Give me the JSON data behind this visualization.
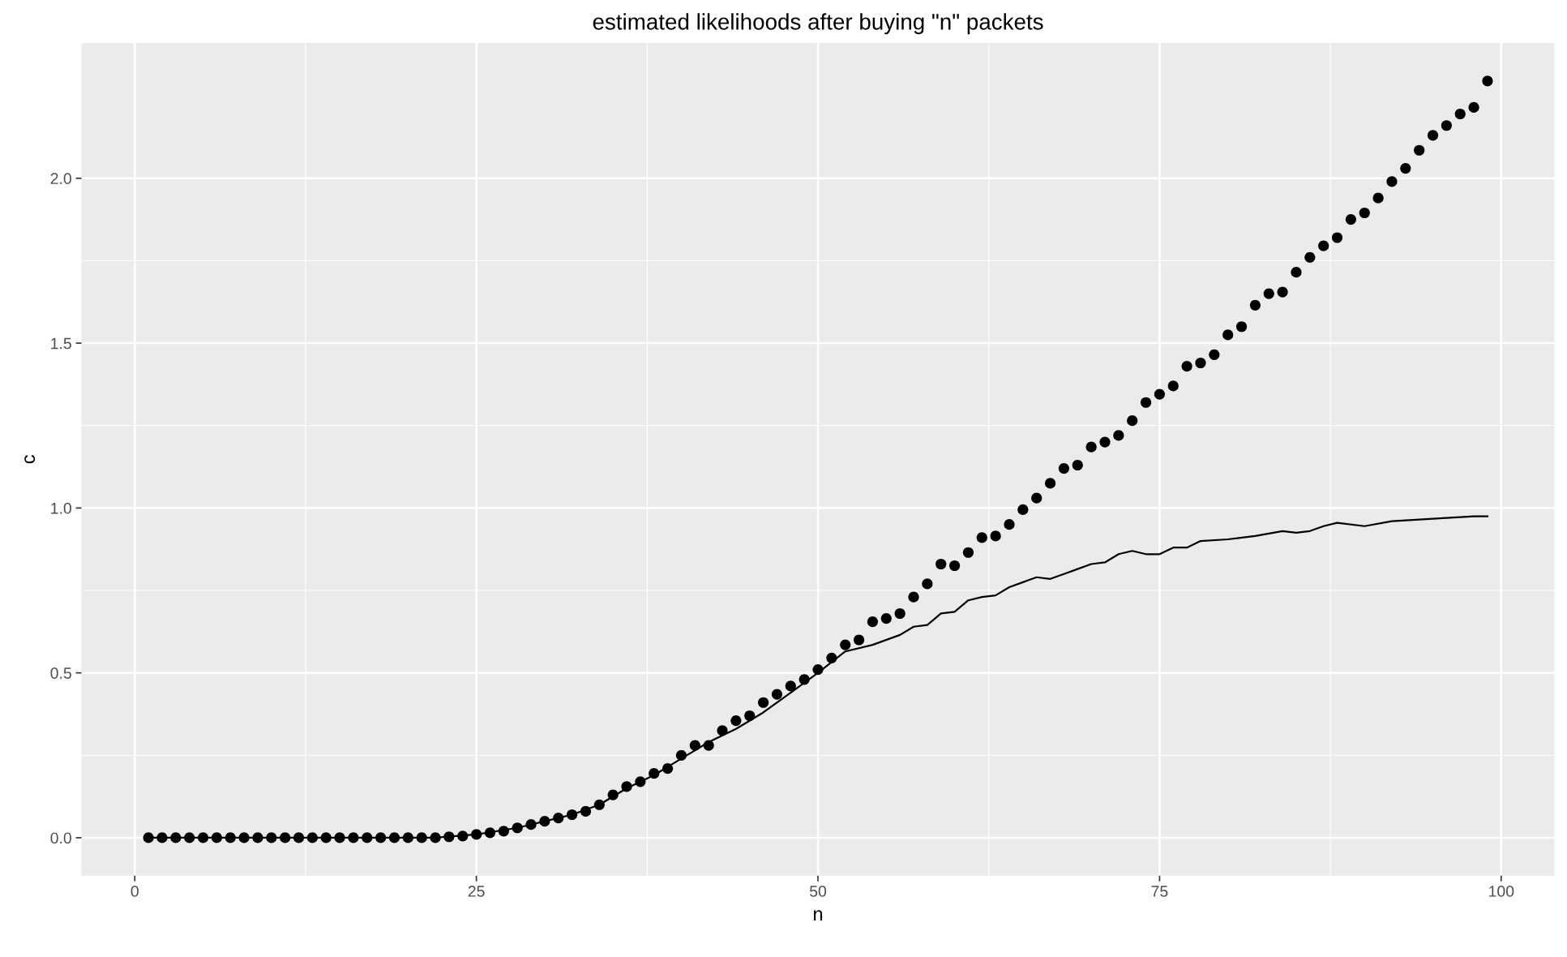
{
  "chart_data": {
    "type": "scatter",
    "title": "estimated likelihoods after buying \"n\" packets",
    "xlabel": "n",
    "ylabel": "c",
    "xlim": [
      -3.9,
      103.9
    ],
    "ylim": [
      -0.115,
      2.41
    ],
    "xticks": [
      0,
      25,
      50,
      75,
      100
    ],
    "yticks": [
      {
        "value": 0,
        "label": "0.0"
      },
      {
        "value": 0.5,
        "label": "0.5"
      },
      {
        "value": 1,
        "label": "1.0"
      },
      {
        "value": 1.5,
        "label": "1.5"
      },
      {
        "value": 2,
        "label": "2.0"
      }
    ],
    "grid": true,
    "marker": "circle",
    "series": [
      {
        "color": "#000000",
        "x": [
          1,
          2,
          3,
          4,
          5,
          6,
          7,
          8,
          9,
          10,
          11,
          12,
          13,
          14,
          15,
          16,
          17,
          18,
          19,
          20,
          21,
          22,
          23,
          24,
          25,
          26,
          27,
          28,
          29,
          30,
          31,
          32,
          33,
          34,
          35,
          36,
          37,
          38,
          39,
          40,
          41,
          42,
          43,
          44,
          45,
          46,
          47,
          48,
          49,
          50,
          51,
          52,
          53,
          54,
          55,
          56,
          57,
          58,
          59,
          60,
          61,
          62,
          63,
          64,
          65,
          66,
          67,
          68,
          69,
          70,
          71,
          72,
          73,
          74,
          75,
          76,
          77,
          78,
          79,
          80,
          81,
          82,
          83,
          84,
          85,
          86,
          87,
          88,
          89,
          90,
          91,
          92,
          93,
          94,
          95,
          96,
          97,
          98,
          99
        ],
        "values": [
          0,
          0,
          0,
          0,
          0,
          0,
          0,
          0,
          0,
          0,
          0,
          0,
          0,
          0,
          0,
          0,
          0,
          0,
          0,
          0,
          0,
          0,
          0.003,
          0.005,
          0.01,
          0.015,
          0.02,
          0.03,
          0.04,
          0.05,
          0.06,
          0.07,
          0.08,
          0.1,
          0.13,
          0.155,
          0.17,
          0.195,
          0.21,
          0.25,
          0.28,
          0.28,
          0.325,
          0.355,
          0.37,
          0.41,
          0.435,
          0.46,
          0.48,
          0.51,
          0.545,
          0.585,
          0.6,
          0.655,
          0.665,
          0.68,
          0.73,
          0.77,
          0.83,
          0.825,
          0.865,
          0.91,
          0.915,
          0.95,
          0.995,
          1.03,
          1.075,
          1.12,
          1.13,
          1.185,
          1.2,
          1.22,
          1.265,
          1.32,
          1.345,
          1.37,
          1.43,
          1.44,
          1.465,
          1.525,
          1.55,
          1.615,
          1.65,
          1.655,
          1.715,
          1.76,
          1.795,
          1.82,
          1.875,
          1.895,
          1.94,
          1.99,
          2.03,
          2.085,
          2.13,
          2.16,
          2.195,
          2.215,
          2.295
        ]
      },
      {
        "type": "line",
        "color": "#000000",
        "marker": "none",
        "line_style": "solid",
        "x": [
          1,
          22,
          25,
          28,
          30,
          32,
          34,
          36,
          38,
          40,
          42,
          44,
          46,
          48,
          50,
          52,
          54,
          56,
          57,
          58,
          59,
          60,
          61,
          62,
          63,
          64,
          65,
          66,
          67,
          68,
          69,
          70,
          71,
          72,
          73,
          74,
          75,
          76,
          77,
          78,
          80,
          82,
          84,
          85,
          86,
          87,
          88,
          90,
          92,
          94,
          96,
          98,
          99
        ],
        "values": [
          0,
          0,
          0.01,
          0.03,
          0.05,
          0.07,
          0.1,
          0.15,
          0.19,
          0.24,
          0.29,
          0.33,
          0.38,
          0.44,
          0.5,
          0.565,
          0.585,
          0.615,
          0.64,
          0.645,
          0.68,
          0.685,
          0.72,
          0.73,
          0.735,
          0.76,
          0.775,
          0.79,
          0.785,
          0.8,
          0.815,
          0.83,
          0.835,
          0.86,
          0.87,
          0.86,
          0.86,
          0.88,
          0.88,
          0.9,
          0.905,
          0.915,
          0.93,
          0.925,
          0.93,
          0.945,
          0.955,
          0.945,
          0.96,
          0.965,
          0.97,
          0.975,
          0.975
        ]
      }
    ]
  }
}
